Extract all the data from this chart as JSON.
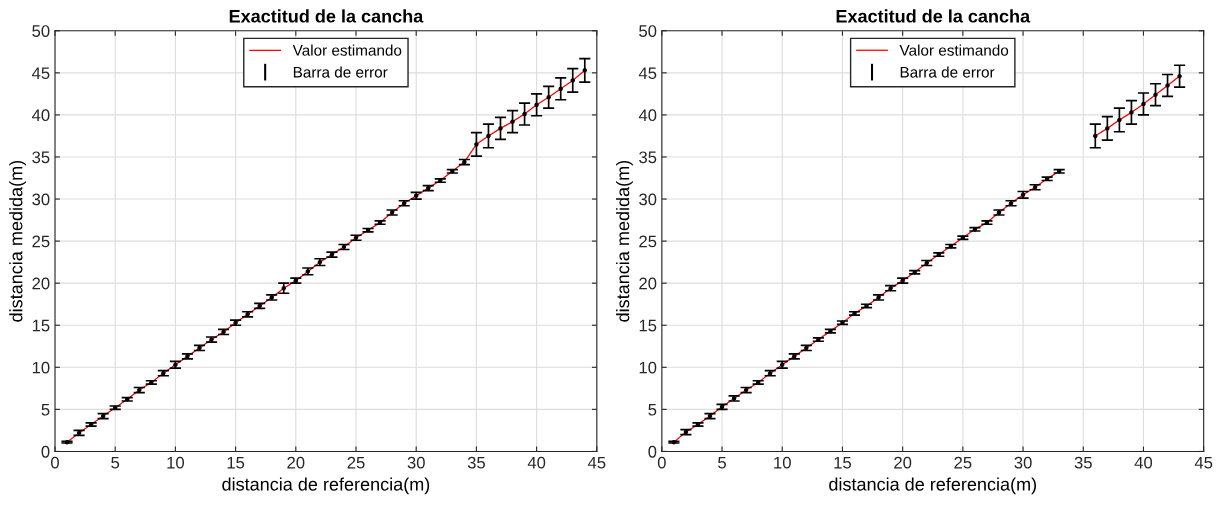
{
  "chart_data": [
    {
      "type": "line",
      "title": "Exactitud de la cancha",
      "xlabel": "distancia de referencia(m)",
      "ylabel": "distancia medida(m)",
      "x": [
        1,
        2,
        3,
        4,
        5,
        6,
        7,
        8,
        9,
        10,
        11,
        12,
        13,
        14,
        15,
        16,
        17,
        18,
        19,
        20,
        21,
        22,
        23,
        24,
        25,
        26,
        27,
        28,
        29,
        30,
        31,
        32,
        33,
        34,
        35,
        36,
        37,
        38,
        39,
        40,
        41,
        42,
        43,
        44
      ],
      "series": [
        {
          "name": "Valor estimando",
          "marker": "none",
          "color": "#ff0000",
          "values": [
            1.1,
            2.2,
            3.2,
            4.2,
            5.2,
            6.2,
            7.3,
            8.2,
            9.3,
            10.3,
            11.3,
            12.3,
            13.3,
            14.2,
            15.3,
            16.3,
            17.3,
            18.3,
            19.4,
            20.3,
            21.4,
            22.5,
            23.4,
            24.3,
            25.4,
            26.3,
            27.2,
            28.4,
            29.5,
            30.4,
            31.3,
            32.2,
            33.3,
            34.4,
            36.5,
            37.5,
            38.4,
            39.2,
            40.1,
            41.2,
            42.1,
            43.1,
            44.1,
            45.3
          ]
        },
        {
          "name": "Barra de error",
          "type": "scatter",
          "marker": "circle",
          "color": "#000000",
          "values": [
            1.1,
            2.2,
            3.2,
            4.2,
            5.2,
            6.2,
            7.3,
            8.2,
            9.3,
            10.3,
            11.3,
            12.3,
            13.3,
            14.2,
            15.3,
            16.3,
            17.3,
            18.3,
            19.4,
            20.3,
            21.4,
            22.5,
            23.4,
            24.3,
            25.4,
            26.3,
            27.2,
            28.4,
            29.5,
            30.4,
            31.3,
            32.2,
            33.3,
            34.4,
            36.5,
            37.5,
            38.4,
            39.2,
            40.1,
            41.2,
            42.1,
            43.1,
            44.1,
            45.3
          ],
          "errors": [
            0.1,
            0.3,
            0.2,
            0.3,
            0.2,
            0.2,
            0.3,
            0.2,
            0.3,
            0.4,
            0.3,
            0.3,
            0.3,
            0.3,
            0.3,
            0.3,
            0.3,
            0.3,
            0.6,
            0.3,
            0.4,
            0.4,
            0.3,
            0.3,
            0.3,
            0.2,
            0.2,
            0.3,
            0.3,
            0.4,
            0.3,
            0.2,
            0.2,
            0.3,
            1.4,
            1.4,
            1.3,
            1.3,
            1.3,
            1.3,
            1.3,
            1.3,
            1.4,
            1.4
          ]
        }
      ],
      "xlim": [
        0,
        45
      ],
      "xticks": [
        0,
        5,
        10,
        15,
        20,
        25,
        30,
        35,
        40,
        45
      ],
      "ylim": [
        0,
        50
      ],
      "yticks": [
        0,
        5,
        10,
        15,
        20,
        25,
        30,
        35,
        40,
        45,
        50
      ],
      "grid": true,
      "legend": "top"
    },
    {
      "type": "line",
      "title": "Exactitud de la cancha",
      "xlabel": "distancia de referencia(m)",
      "ylabel": "distancia medida(m)",
      "x": [
        1,
        2,
        3,
        4,
        5,
        6,
        7,
        8,
        9,
        10,
        11,
        12,
        13,
        14,
        15,
        16,
        17,
        18,
        19,
        20,
        21,
        22,
        23,
        24,
        25,
        26,
        27,
        28,
        29,
        30,
        31,
        32,
        33,
        34,
        35,
        36,
        37,
        38,
        39,
        40,
        41,
        42,
        43
      ],
      "series": [
        {
          "name": "Valor estimando",
          "marker": "none",
          "color": "#ff0000",
          "values": [
            1.1,
            2.3,
            3.2,
            4.2,
            5.3,
            6.3,
            7.3,
            8.2,
            9.3,
            10.3,
            11.3,
            12.3,
            13.3,
            14.3,
            15.3,
            16.4,
            17.3,
            18.3,
            19.4,
            20.3,
            21.3,
            22.4,
            23.4,
            24.4,
            25.4,
            26.4,
            27.2,
            28.4,
            29.5,
            30.5,
            31.4,
            32.4,
            33.3,
            null,
            null,
            37.5,
            38.4,
            39.4,
            40.3,
            41.3,
            42.4,
            43.5,
            44.6
          ]
        },
        {
          "name": "Barra de error",
          "type": "scatter",
          "marker": "circle",
          "color": "#000000",
          "values": [
            1.1,
            2.3,
            3.2,
            4.2,
            5.3,
            6.3,
            7.3,
            8.2,
            9.3,
            10.3,
            11.3,
            12.3,
            13.3,
            14.3,
            15.3,
            16.4,
            17.3,
            18.3,
            19.4,
            20.3,
            21.3,
            22.4,
            23.4,
            24.4,
            25.4,
            26.4,
            27.2,
            28.4,
            29.5,
            30.5,
            31.4,
            32.4,
            33.3,
            null,
            null,
            37.5,
            38.4,
            39.4,
            40.3,
            41.3,
            42.4,
            43.5,
            44.6
          ],
          "errors": [
            0.1,
            0.3,
            0.2,
            0.3,
            0.3,
            0.3,
            0.3,
            0.2,
            0.3,
            0.4,
            0.3,
            0.3,
            0.2,
            0.2,
            0.2,
            0.2,
            0.2,
            0.3,
            0.3,
            0.3,
            0.2,
            0.3,
            0.2,
            0.2,
            0.2,
            0.2,
            0.2,
            0.3,
            0.3,
            0.4,
            0.3,
            0.2,
            0.2,
            null,
            null,
            1.4,
            1.4,
            1.4,
            1.4,
            1.3,
            1.3,
            1.3,
            1.3
          ]
        }
      ],
      "xlim": [
        0,
        45
      ],
      "xticks": [
        0,
        5,
        10,
        15,
        20,
        25,
        30,
        35,
        40,
        45
      ],
      "ylim": [
        0,
        50
      ],
      "yticks": [
        0,
        5,
        10,
        15,
        20,
        25,
        30,
        35,
        40,
        45,
        50
      ],
      "grid": true,
      "legend": "top"
    }
  ]
}
